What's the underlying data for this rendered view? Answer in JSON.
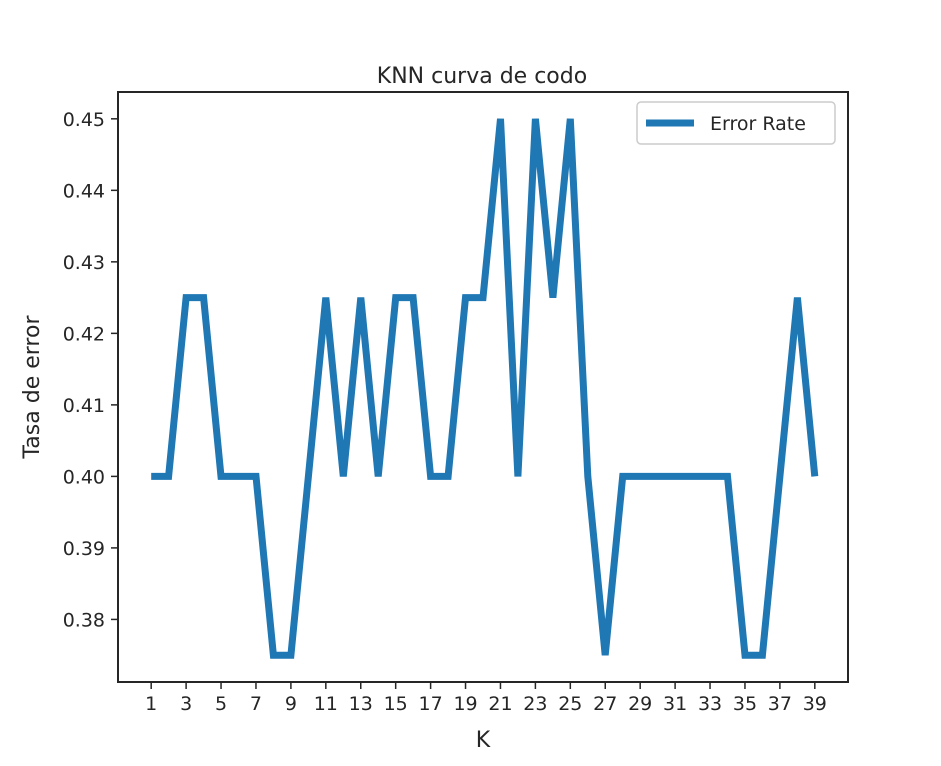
{
  "chart_data": {
    "type": "line",
    "title": "KNN curva de codo",
    "xlabel": "K",
    "ylabel": "Tasa de error",
    "xlim": [
      -0.9,
      40.9
    ],
    "ylim": [
      0.37125,
      0.45375
    ],
    "xticks": [
      1,
      3,
      5,
      7,
      9,
      11,
      13,
      15,
      17,
      19,
      21,
      23,
      25,
      27,
      29,
      31,
      33,
      35,
      37,
      39
    ],
    "yticks": [
      0.38,
      0.39,
      0.4,
      0.41,
      0.42,
      0.43,
      0.44,
      0.45
    ],
    "ytick_labels": [
      "0.38",
      "0.39",
      "0.40",
      "0.41",
      "0.42",
      "0.43",
      "0.44",
      "0.45"
    ],
    "grid": false,
    "legend_position": "top-right",
    "x": [
      1,
      2,
      3,
      4,
      5,
      6,
      7,
      8,
      9,
      10,
      11,
      12,
      13,
      14,
      15,
      16,
      17,
      18,
      19,
      20,
      21,
      22,
      23,
      24,
      25,
      26,
      27,
      28,
      29,
      30,
      31,
      32,
      33,
      34,
      35,
      36,
      37,
      38,
      39
    ],
    "series": [
      {
        "name": "Error Rate",
        "color": "#1f77b4",
        "values": [
          0.4,
          0.4,
          0.425,
          0.425,
          0.4,
          0.4,
          0.4,
          0.375,
          0.375,
          0.4,
          0.425,
          0.4,
          0.425,
          0.4,
          0.425,
          0.425,
          0.4,
          0.4,
          0.425,
          0.425,
          0.45,
          0.4,
          0.45,
          0.425,
          0.45,
          0.4,
          0.375,
          0.4,
          0.4,
          0.4,
          0.4,
          0.4,
          0.4,
          0.4,
          0.375,
          0.375,
          0.4,
          0.425,
          0.4
        ]
      }
    ]
  }
}
